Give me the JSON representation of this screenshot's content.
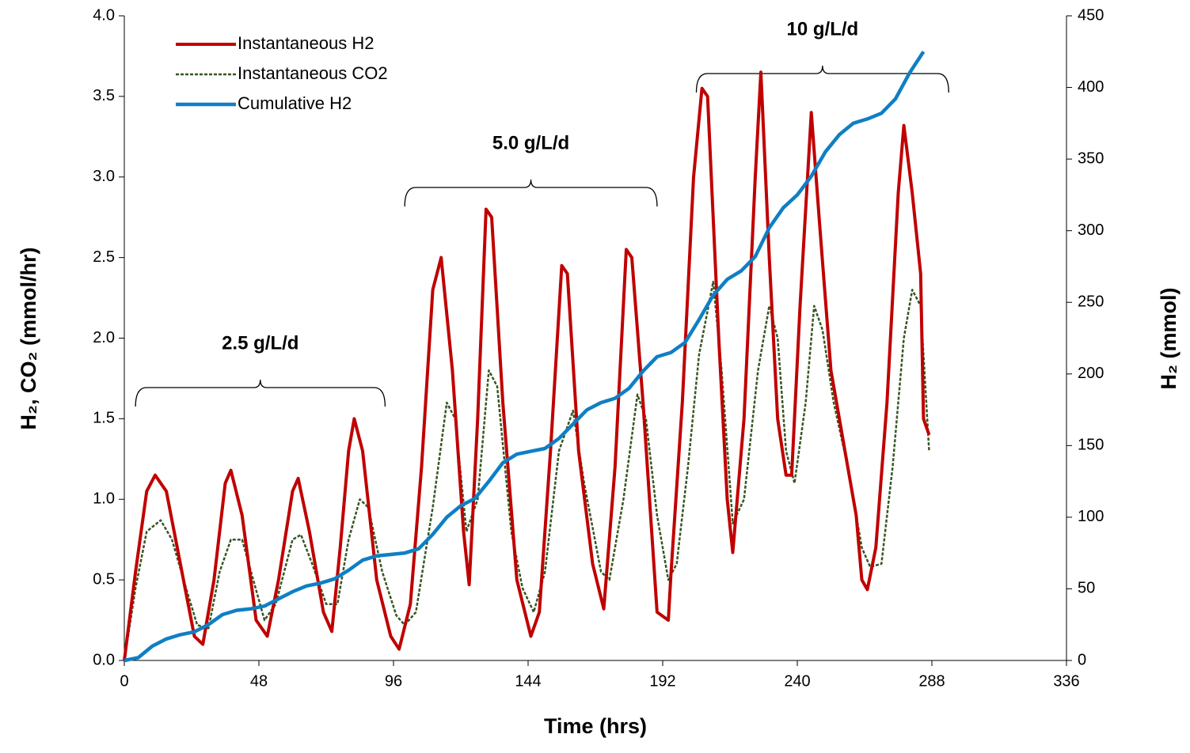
{
  "chart_data": {
    "type": "line",
    "x_label": "Time (hrs)",
    "y_label": "H₂, CO₂ (mmol/hr)",
    "y2_label": "H₂ (mmol)",
    "xlim": [
      0,
      336
    ],
    "xticks": [
      0,
      48,
      96,
      144,
      192,
      240,
      288,
      336
    ],
    "ylim": [
      0,
      4
    ],
    "yticks": [
      {
        "value": 0,
        "label": "0.0"
      },
      0.5,
      {
        "value": 1,
        "label": "1.0"
      },
      1.5,
      {
        "value": 2,
        "label": "2.0"
      },
      2.5,
      {
        "value": 3,
        "label": "3.0"
      },
      3.5,
      {
        "value": 4,
        "label": "4.0"
      }
    ],
    "y2lim": [
      0,
      450
    ],
    "y2ticks": [
      0,
      50,
      100,
      150,
      200,
      250,
      300,
      350,
      400,
      450
    ],
    "legend": "upper left",
    "annotations": [
      "2.5 g/L/d",
      "5.0 g/L/d",
      "10 g/L/d"
    ],
    "series": [
      {
        "name": "Instantaneous H2",
        "color": "#c00000",
        "style": "solid",
        "width": 4,
        "x": [
          0,
          4,
          8,
          11,
          15,
          20,
          25,
          28,
          32,
          36,
          38,
          42,
          47,
          51,
          55,
          60,
          62,
          66,
          71,
          74,
          77,
          80,
          82,
          85,
          90,
          95,
          98,
          102,
          106,
          110,
          113,
          117,
          121,
          123,
          126,
          129,
          131,
          135,
          140,
          145,
          148,
          152,
          156,
          158,
          162,
          167,
          171,
          175,
          179,
          181,
          185,
          190,
          194,
          195,
          199,
          203,
          206,
          208,
          212,
          215,
          217,
          221,
          225,
          227,
          230,
          233,
          236,
          238,
          241,
          245,
          248,
          252,
          257,
          261,
          263,
          265,
          268,
          272,
          276,
          278,
          281,
          284,
          285,
          287
        ],
        "values": [
          0,
          0.55,
          1.05,
          1.15,
          1.05,
          0.6,
          0.15,
          0.1,
          0.5,
          1.1,
          1.18,
          0.9,
          0.25,
          0.15,
          0.5,
          1.05,
          1.13,
          0.8,
          0.3,
          0.18,
          0.7,
          1.3,
          1.5,
          1.3,
          0.5,
          0.15,
          0.07,
          0.35,
          1.2,
          2.3,
          2.5,
          1.8,
          0.8,
          0.47,
          1.5,
          2.8,
          2.75,
          1.6,
          0.5,
          0.15,
          0.3,
          1.3,
          2.45,
          2.4,
          1.3,
          0.6,
          0.32,
          1.2,
          2.55,
          2.5,
          1.6,
          0.3,
          0.25,
          0.55,
          1.6,
          3.0,
          3.55,
          3.5,
          2.0,
          1.0,
          0.67,
          1.5,
          3.0,
          3.65,
          2.5,
          1.5,
          1.15,
          1.15,
          2.2,
          3.4,
          2.7,
          1.8,
          1.3,
          0.9,
          0.5,
          0.44,
          0.7,
          1.6,
          2.9,
          3.32,
          2.9,
          2.4,
          1.5,
          1.4
        ]
      },
      {
        "name": "Instantaneous CO2",
        "color": "#375623",
        "style": "dashed",
        "width": 2.5,
        "x": [
          0,
          4,
          8,
          13,
          17,
          22,
          26,
          30,
          34,
          38,
          42,
          46,
          50,
          54,
          60,
          63,
          67,
          72,
          76,
          80,
          84,
          87,
          92,
          97,
          100,
          104,
          110,
          115,
          118,
          122,
          126,
          130,
          133,
          138,
          142,
          146,
          150,
          155,
          160,
          164,
          170,
          173,
          178,
          183,
          186,
          190,
          194,
          197,
          201,
          205,
          210,
          213,
          217,
          221,
          226,
          230,
          233,
          236,
          239,
          243,
          246,
          249,
          253,
          258,
          263,
          266,
          270,
          274,
          278,
          281,
          284,
          286,
          287
        ],
        "values": [
          0,
          0.45,
          0.8,
          0.87,
          0.75,
          0.45,
          0.22,
          0.2,
          0.55,
          0.75,
          0.75,
          0.5,
          0.25,
          0.35,
          0.75,
          0.78,
          0.6,
          0.35,
          0.35,
          0.75,
          1.0,
          0.95,
          0.55,
          0.28,
          0.22,
          0.3,
          0.95,
          1.6,
          1.5,
          0.8,
          1.0,
          1.8,
          1.7,
          0.8,
          0.45,
          0.3,
          0.55,
          1.3,
          1.55,
          1.1,
          0.55,
          0.5,
          1.0,
          1.65,
          1.5,
          0.9,
          0.5,
          0.6,
          1.2,
          1.9,
          2.35,
          1.8,
          0.85,
          1.0,
          1.8,
          2.2,
          2.0,
          1.3,
          1.1,
          1.6,
          2.2,
          2.05,
          1.6,
          1.2,
          0.7,
          0.58,
          0.6,
          1.2,
          2.0,
          2.3,
          2.2,
          1.6,
          1.3
        ]
      },
      {
        "name": "Cumulative H2",
        "color": "#0f7fc4",
        "style": "solid",
        "width": 4.5,
        "axis": "y2",
        "x": [
          0,
          5,
          10,
          15,
          20,
          25,
          30,
          35,
          40,
          45,
          50,
          55,
          60,
          65,
          70,
          75,
          80,
          85,
          90,
          95,
          100,
          105,
          110,
          115,
          120,
          125,
          130,
          135,
          140,
          145,
          150,
          155,
          160,
          165,
          170,
          175,
          180,
          185,
          190,
          195,
          200,
          205,
          210,
          215,
          220,
          225,
          230,
          235,
          240,
          245,
          250,
          255,
          260,
          265,
          270,
          275,
          280,
          285
        ],
        "values": [
          0,
          2,
          10,
          15,
          18,
          20,
          25,
          32,
          35,
          36,
          38,
          43,
          48,
          52,
          54,
          57,
          63,
          70,
          73,
          74,
          75,
          78,
          88,
          100,
          108,
          113,
          125,
          138,
          144,
          146,
          148,
          155,
          165,
          175,
          180,
          183,
          190,
          202,
          212,
          215,
          222,
          238,
          255,
          266,
          272,
          282,
          302,
          316,
          325,
          338,
          355,
          367,
          375,
          378,
          382,
          392,
          410,
          425
        ]
      }
    ]
  }
}
